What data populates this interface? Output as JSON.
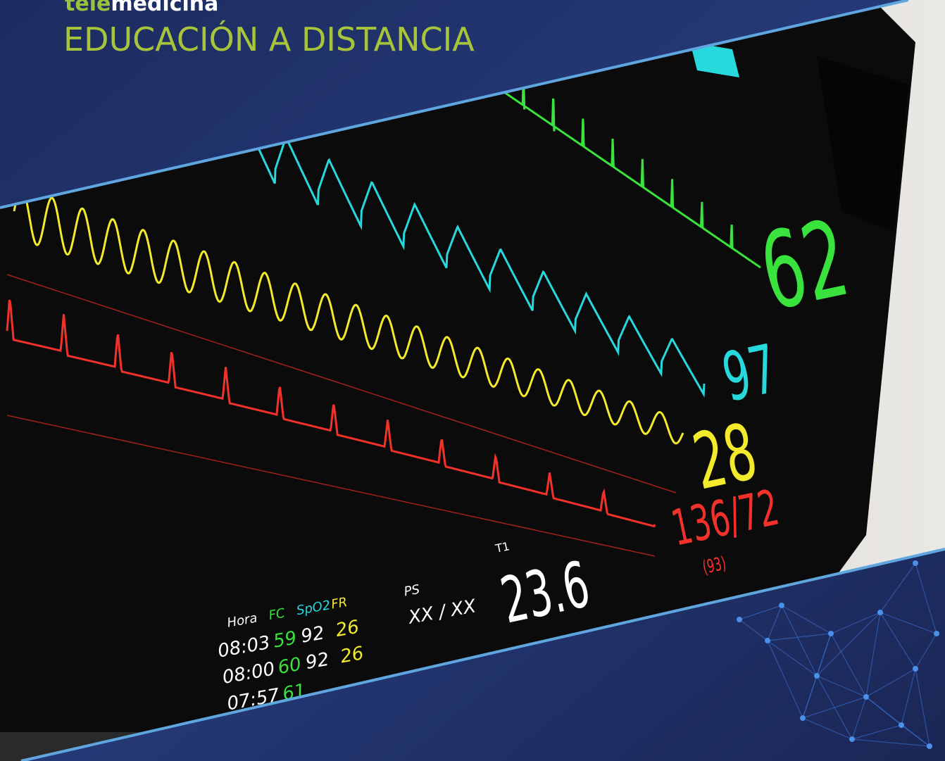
{
  "header": {
    "brand_prefix": "tele",
    "brand_suffix": "medicina",
    "subtitle": "EDUCACIÓN A DISTANCIA"
  },
  "monitor": {
    "readings": [
      {
        "value": "62",
        "color": "#39e23c"
      },
      {
        "value": "97",
        "color": "#27d8dc"
      },
      {
        "value": "28",
        "color": "#f2ea2a"
      },
      {
        "value": "136/72",
        "color": "#f2322a"
      },
      {
        "value": "(93)",
        "color": "#f2322a"
      },
      {
        "value": "23.6",
        "color": "#ffffff"
      }
    ],
    "temp_label": "T1",
    "table": {
      "headers": [
        "Hora",
        "FC",
        "SpO2",
        "FR",
        "PS"
      ],
      "rows": [
        [
          "08:03",
          "59",
          "92",
          "26",
          "XX / XX"
        ],
        [
          "08:00",
          "60",
          "92",
          "26"
        ],
        [
          "07:57",
          "61"
        ]
      ]
    }
  }
}
